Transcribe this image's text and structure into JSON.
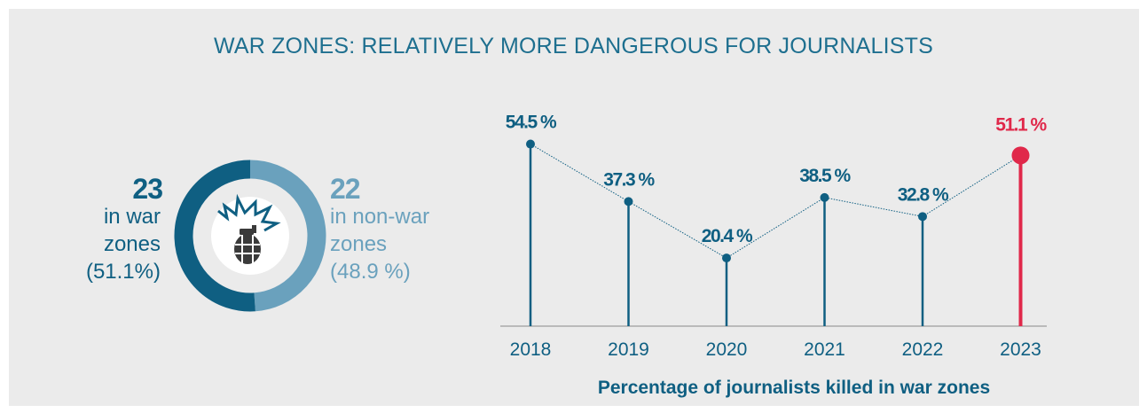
{
  "title": "WAR ZONES: RELATIVELY MORE DANGEROUS FOR JOURNALISTS",
  "summary": {
    "war": {
      "count": "23",
      "label": "in war\nzones\n(51.1%)",
      "share": 0.511
    },
    "nonwar": {
      "count": "22",
      "label": "in non-war\nzones\n(48.9 %)",
      "share": 0.489
    }
  },
  "icon": "grenade-explosion-icon",
  "colors": {
    "war": "#0f5f82",
    "nonwar": "#6aa1bd",
    "highlight": "#e0284a",
    "title": "#1e6f8f",
    "panel": "#ebebeb"
  },
  "chart_data": {
    "type": "line",
    "categories": [
      "2018",
      "2019",
      "2020",
      "2021",
      "2022",
      "2023"
    ],
    "values": [
      54.5,
      37.3,
      20.4,
      38.5,
      32.8,
      51.1
    ],
    "data_labels": [
      "54.5 %",
      "37.3 %",
      "20.4 %",
      "38.5 %",
      "32.8 %",
      "51.1 %"
    ],
    "highlight_index": 5,
    "xlabel": "Percentage of journalists killed in war zones",
    "ylabel": "",
    "ylim": [
      0,
      60
    ],
    "grid": false,
    "legend": "none"
  }
}
